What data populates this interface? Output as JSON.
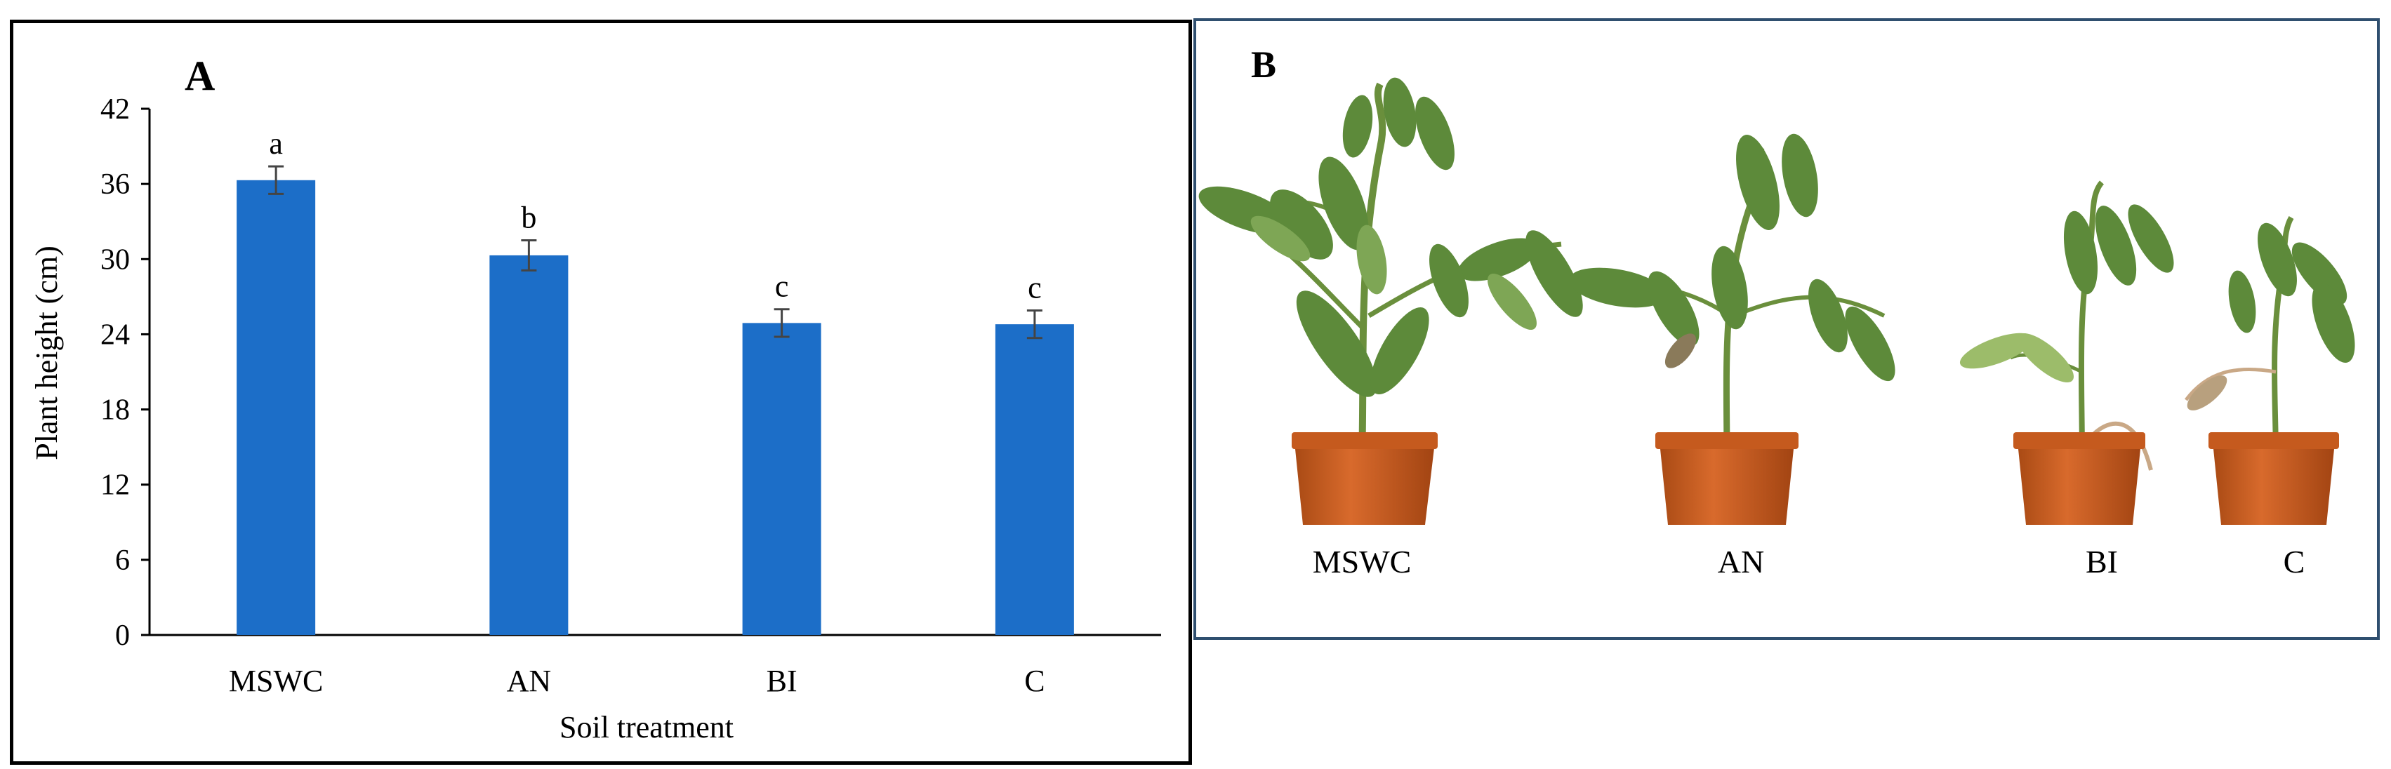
{
  "panel_a": {
    "label": "A"
  },
  "panel_b": {
    "label": "B",
    "plants": [
      {
        "label": "MSWC"
      },
      {
        "label": "AN"
      },
      {
        "label": "BI"
      },
      {
        "label": "C"
      }
    ]
  },
  "chart_data": {
    "type": "bar",
    "categories": [
      "MSWC",
      "AN",
      "BI",
      "C"
    ],
    "values": [
      36.3,
      30.3,
      24.9,
      24.8
    ],
    "errors": [
      1.1,
      1.2,
      1.1,
      1.1
    ],
    "significance": [
      "a",
      "b",
      "c",
      "c"
    ],
    "title": "",
    "xlabel": "Soil treatment",
    "ylabel": "Plant height (cm)",
    "ylim": [
      0,
      42
    ],
    "yticks": [
      0,
      6,
      12,
      18,
      24,
      30,
      36,
      42
    ],
    "bar_color": "#1c6ec8",
    "grid": false,
    "legend": "none"
  }
}
